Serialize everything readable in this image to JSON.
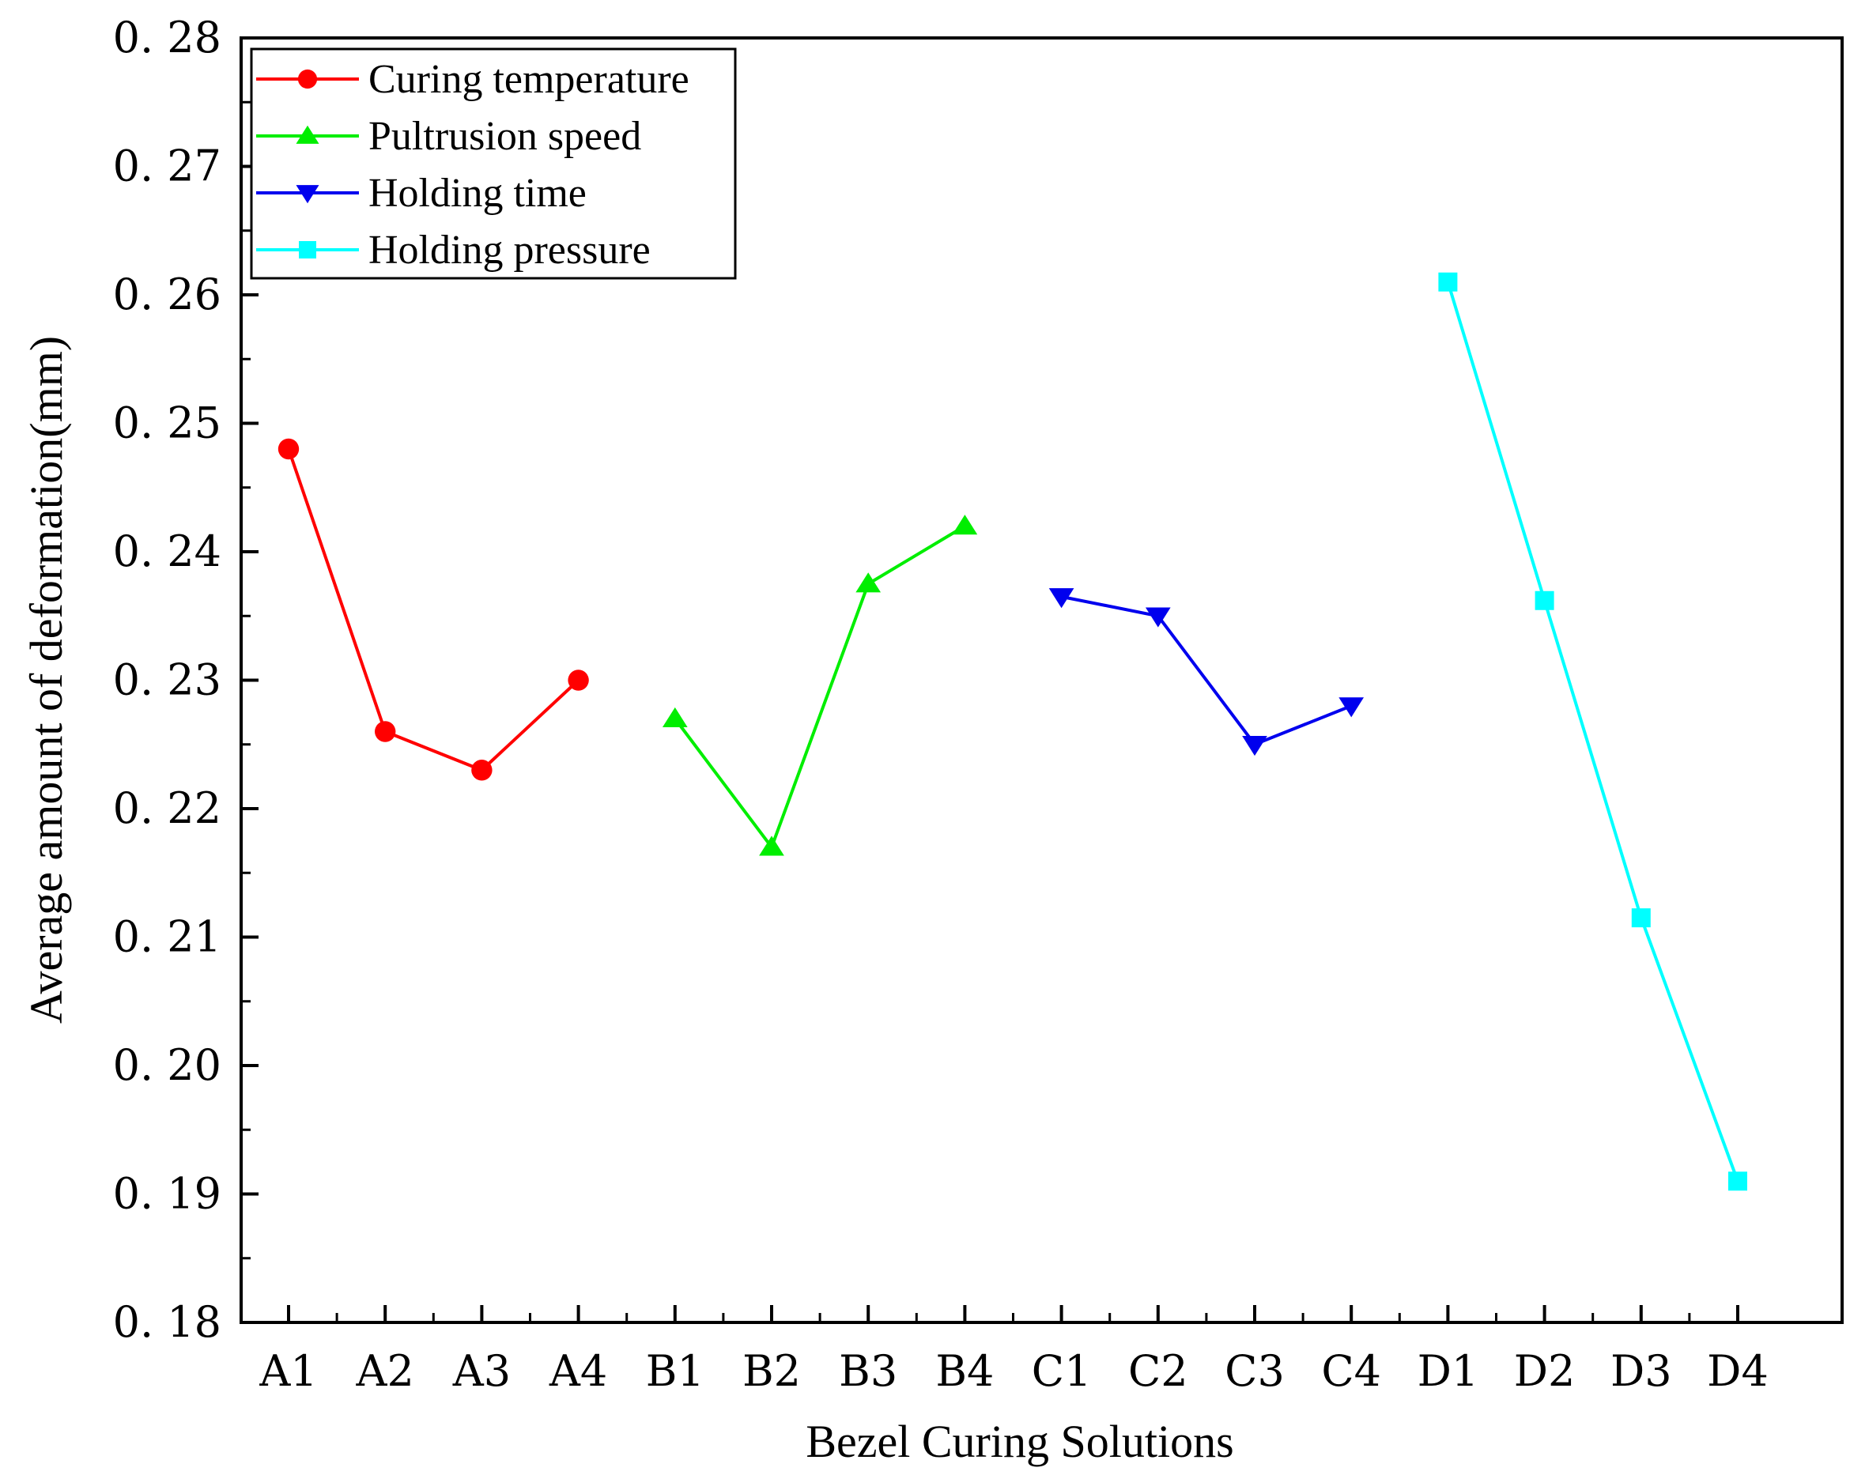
{
  "chart_data": {
    "type": "line",
    "title": "",
    "xlabel": "Bezel Curing Solutions",
    "ylabel": "Average amount of deformation(mm)",
    "ylim": [
      0.18,
      0.28
    ],
    "yticks": [
      "0.18",
      "0.19",
      "0.20",
      "0.21",
      "0.22",
      "0.23",
      "0.24",
      "0.25",
      "0.26",
      "0.27",
      "0.28"
    ],
    "categories": [
      "A1",
      "A2",
      "A3",
      "A4",
      "B1",
      "B2",
      "B3",
      "B4",
      "C1",
      "C2",
      "C3",
      "C4",
      "D1",
      "D2",
      "D3",
      "D4"
    ],
    "legend_position": "top-left",
    "grid": false,
    "series": [
      {
        "name": "Curing temperature",
        "color": "#ff0000",
        "marker": "circle",
        "x": [
          "A1",
          "A2",
          "A3",
          "A4"
        ],
        "values": [
          0.248,
          0.226,
          0.223,
          0.23
        ]
      },
      {
        "name": "Pultrusion speed",
        "color": "#00ee00",
        "marker": "triangle-up",
        "x": [
          "B1",
          "B2",
          "B3",
          "B4"
        ],
        "values": [
          0.227,
          0.217,
          0.2375,
          0.242
        ]
      },
      {
        "name": "Holding time",
        "color": "#0000ee",
        "marker": "triangle-down",
        "x": [
          "C1",
          "C2",
          "C3",
          "C4"
        ],
        "values": [
          0.2365,
          0.235,
          0.225,
          0.228
        ]
      },
      {
        "name": "Holding pressure",
        "color": "#00ffff",
        "marker": "square",
        "x": [
          "D1",
          "D2",
          "D3",
          "D4"
        ],
        "values": [
          0.261,
          0.2362,
          0.2115,
          0.191
        ]
      }
    ]
  }
}
